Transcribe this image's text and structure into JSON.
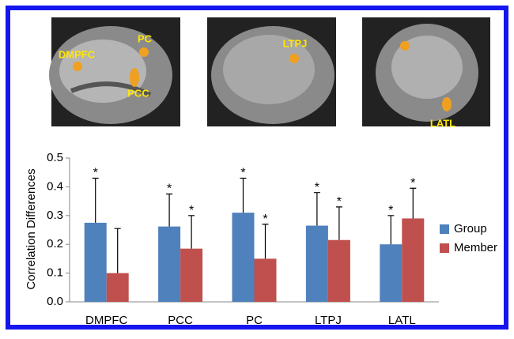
{
  "images": [
    {
      "labels": [
        "DMPFC",
        "PC",
        "PCC"
      ]
    },
    {
      "labels": [
        "LTPJ"
      ]
    },
    {
      "labels": [
        "LATL"
      ]
    }
  ],
  "chart_data": {
    "type": "bar",
    "y_label": "Correlation Differences",
    "categories": [
      "DMPFC",
      "PCC",
      "PC",
      "LTPJ",
      "LATL"
    ],
    "series": [
      {
        "name": "Group",
        "color": "#4f81bd",
        "values": [
          0.275,
          0.262,
          0.31,
          0.265,
          0.2
        ],
        "errors": [
          0.155,
          0.113,
          0.12,
          0.115,
          0.1
        ],
        "labels": [
          "*",
          "*",
          "*",
          "*",
          "*"
        ]
      },
      {
        "name": "Member",
        "color": "#c0504d",
        "values": [
          0.1,
          0.185,
          0.15,
          0.215,
          0.29
        ],
        "errors": [
          0.155,
          0.115,
          0.12,
          0.115,
          0.105
        ],
        "labels": [
          "",
          "*",
          "*",
          "*",
          "*"
        ]
      }
    ],
    "ylim": [
      0,
      0.5
    ],
    "yticks": [
      {
        "value": 0,
        "label": "0.0"
      },
      0.1,
      0.2,
      0.3,
      0.4,
      0.5
    ],
    "legend": "right"
  }
}
